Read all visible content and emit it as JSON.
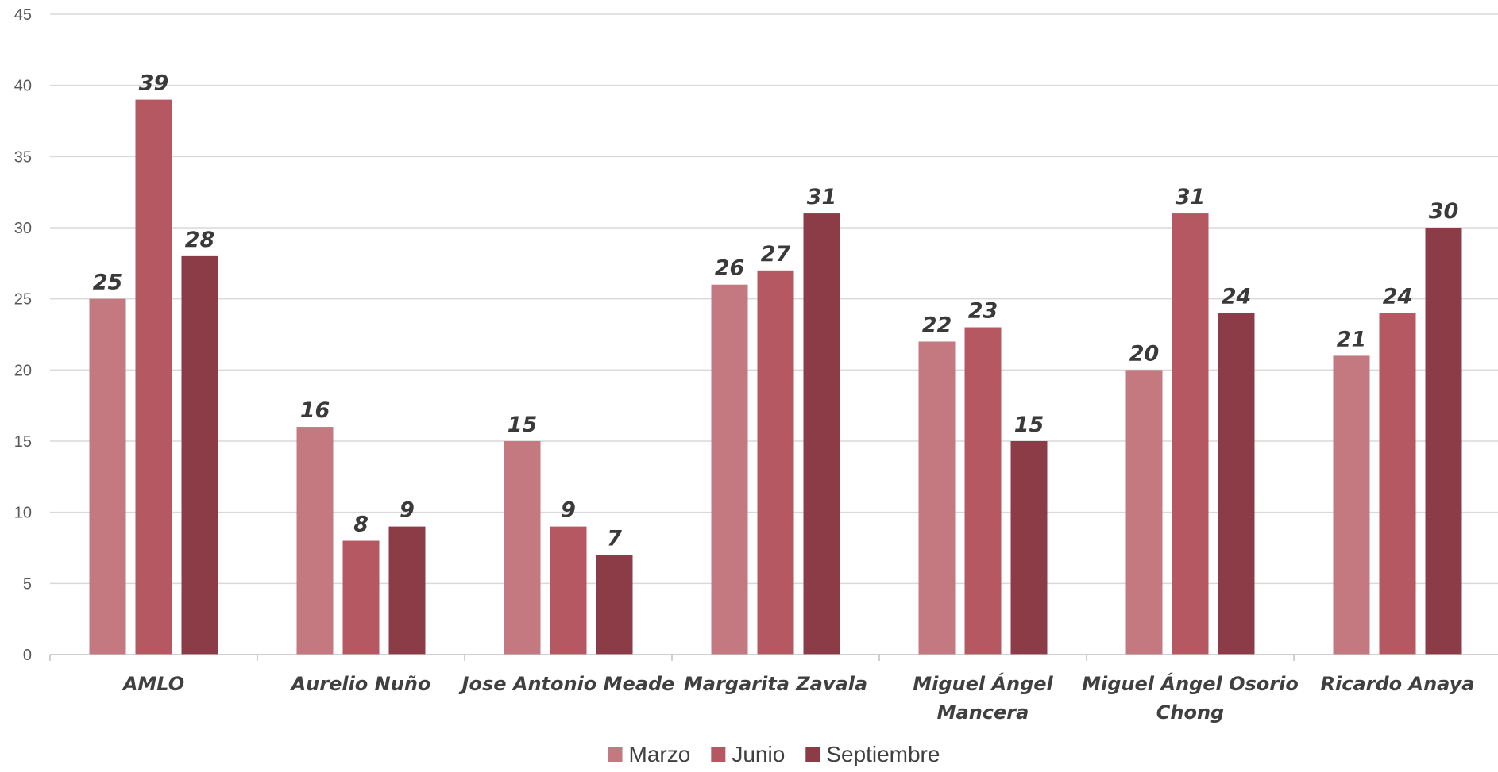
{
  "chart_data": {
    "type": "bar",
    "categories": [
      [
        "AMLO"
      ],
      [
        "Aurelio Nuño"
      ],
      [
        "Jose Antonio Meade"
      ],
      [
        "Margarita Zavala"
      ],
      [
        "Miguel Ángel",
        "Mancera"
      ],
      [
        "Miguel Ángel Osorio",
        "Chong"
      ],
      [
        "Ricardo Anaya"
      ]
    ],
    "series": [
      {
        "name": "Marzo",
        "color": "#c4787f",
        "values": [
          25,
          16,
          15,
          26,
          22,
          20,
          21
        ]
      },
      {
        "name": "Junio",
        "color": "#b55862",
        "values": [
          39,
          8,
          9,
          27,
          23,
          31,
          24
        ]
      },
      {
        "name": "Septiembre",
        "color": "#8b3c46",
        "values": [
          28,
          9,
          7,
          31,
          15,
          24,
          30
        ]
      }
    ],
    "ylim": [
      0,
      45
    ],
    "ytick_step": 5,
    "grid": true,
    "legend_position": "bottom",
    "colors": {
      "grid": "#d9d9d9",
      "axis": "#bfbfbf"
    }
  }
}
